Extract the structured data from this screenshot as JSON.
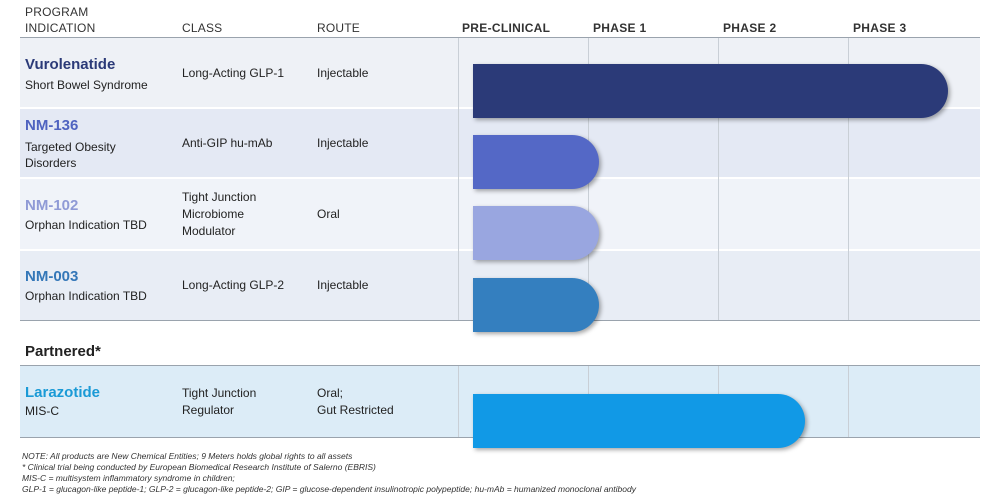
{
  "header": {
    "program_label": "PROGRAM",
    "indication_label": "INDICATION",
    "class_label": "CLASS",
    "route_label": "ROUTE",
    "phases": [
      "PRE-CLINICAL",
      "PHASE 1",
      "PHASE 2",
      "PHASE 3"
    ]
  },
  "section_partnered": "Partnered*",
  "colors": {
    "row_light": "#eef1f6",
    "row_medium": "#e4e9f4",
    "partnered_row": "#dcecf7"
  },
  "chart_data": {
    "type": "bar",
    "orientation": "horizontal",
    "stages": [
      "PRE-CLINICAL",
      "PHASE 1",
      "PHASE 2",
      "PHASE 3"
    ],
    "programs": [
      {
        "name": "Vurolenatide",
        "indication": "Short Bowel Syndrome",
        "class": "Long-Acting GLP-1",
        "route": "Injectable",
        "progress_stages": 3.65,
        "color": "#2b3a78",
        "name_color": "#2b3a78"
      },
      {
        "name": "NM-136",
        "indication": "Targeted Obesity Disorders",
        "class": "Anti-GIP hu-mAb",
        "route": "Injectable",
        "progress_stages": 0.97,
        "color": "#5468c6",
        "name_color": "#4f63c0"
      },
      {
        "name": "NM-102",
        "indication": "Orphan Indication TBD",
        "class": "Tight Junction Microbiome Modulator",
        "route": "Oral",
        "progress_stages": 0.97,
        "color": "#99a6e0",
        "name_color": "#8f9ad6"
      },
      {
        "name": "NM-003",
        "indication": "Orphan Indication TBD",
        "class": "Long-Acting GLP-2",
        "route": "Injectable",
        "progress_stages": 0.97,
        "color": "#347fbf",
        "name_color": "#3477b8"
      }
    ],
    "partnered": [
      {
        "name": "Larazotide",
        "indication": "MIS-C",
        "class": "Tight Junction Regulator",
        "route": "Oral;\nGut Restricted",
        "progress_stages": 2.55,
        "color": "#1199e6",
        "name_color": "#1a9ad6"
      }
    ]
  },
  "notes": [
    "NOTE:  All products are New Chemical Entities; 9 Meters holds global rights to all assets",
    "* Clinical trial being conducted by European Biomedical Research Institute of Salerno (EBRIS)",
    "MIS-C = multisystem inflammatory syndrome in children;",
    "GLP-1 = glucagon-like peptide-1; GLP-2 = glucagon-like peptide-2; GIP = glucose-dependent insulinotropic polypeptide; hu-mAb = humanized monoclonal antibody"
  ]
}
